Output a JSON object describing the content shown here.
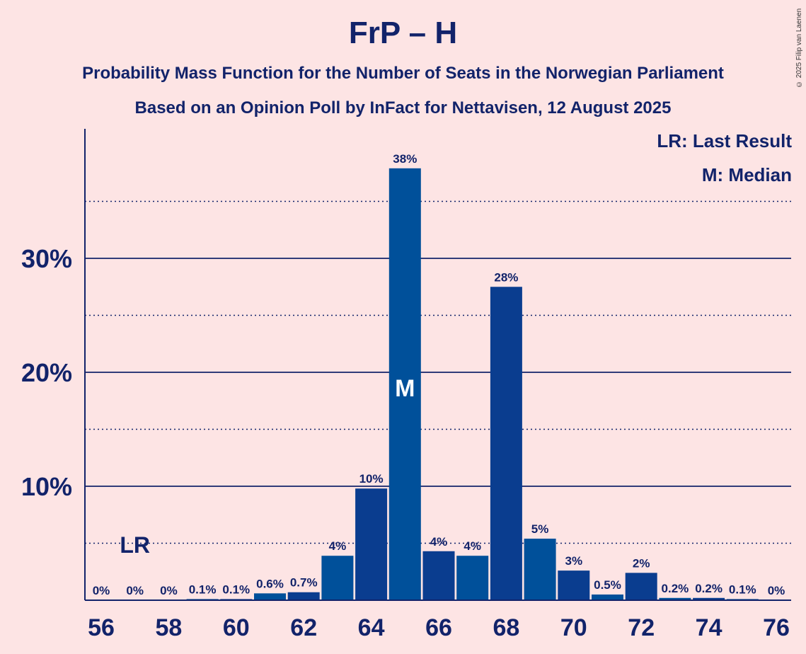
{
  "title": "FrP – H",
  "subtitle_1": "Probability Mass Function for the Number of Seats in the Norwegian Parliament",
  "subtitle_2": "Based on an Opinion Poll by InFact for Nettavisen, 12 August 2025",
  "copyright": "© 2025 Filip van Laenen",
  "legend": {
    "last_result": "LR: Last Result",
    "median": "M: Median"
  },
  "colors": {
    "background": "#fde4e4",
    "bar_dark": "#0a3d8f",
    "bar_light": "#00509a",
    "text": "#12236a"
  },
  "chart_data": {
    "type": "bar",
    "title": "FrP – H",
    "xlabel": "",
    "ylabel": "",
    "ylim": [
      0,
      40
    ],
    "yticks": [
      {
        "value": 10,
        "label": "10%"
      },
      {
        "value": 20,
        "label": "20%"
      },
      {
        "value": 30,
        "label": "30%"
      }
    ],
    "dotted_gridlines": [
      5,
      15,
      25,
      35
    ],
    "x": [
      56,
      57,
      58,
      59,
      60,
      61,
      62,
      63,
      64,
      65,
      66,
      67,
      68,
      69,
      70,
      71,
      72,
      73,
      74,
      75,
      76
    ],
    "xtick_labels": [
      "56",
      "58",
      "60",
      "62",
      "64",
      "66",
      "68",
      "70",
      "72",
      "74",
      "76"
    ],
    "values": [
      0,
      0,
      0,
      0.1,
      0.1,
      0.6,
      0.7,
      3.9,
      9.8,
      37.9,
      4.3,
      3.9,
      27.5,
      5.4,
      2.6,
      0.5,
      2.4,
      0.2,
      0.2,
      0.1,
      0
    ],
    "data_labels": [
      "0%",
      "0%",
      "0%",
      "0.1%",
      "0.1%",
      "0.6%",
      "0.7%",
      "4%",
      "10%",
      "38%",
      "4%",
      "4%",
      "28%",
      "5%",
      "3%",
      "0.5%",
      "2%",
      "0.2%",
      "0.2%",
      "0.1%",
      "0%"
    ],
    "last_result": {
      "x": 57,
      "label": "LR"
    },
    "median": {
      "x": 65,
      "label": "M"
    }
  }
}
